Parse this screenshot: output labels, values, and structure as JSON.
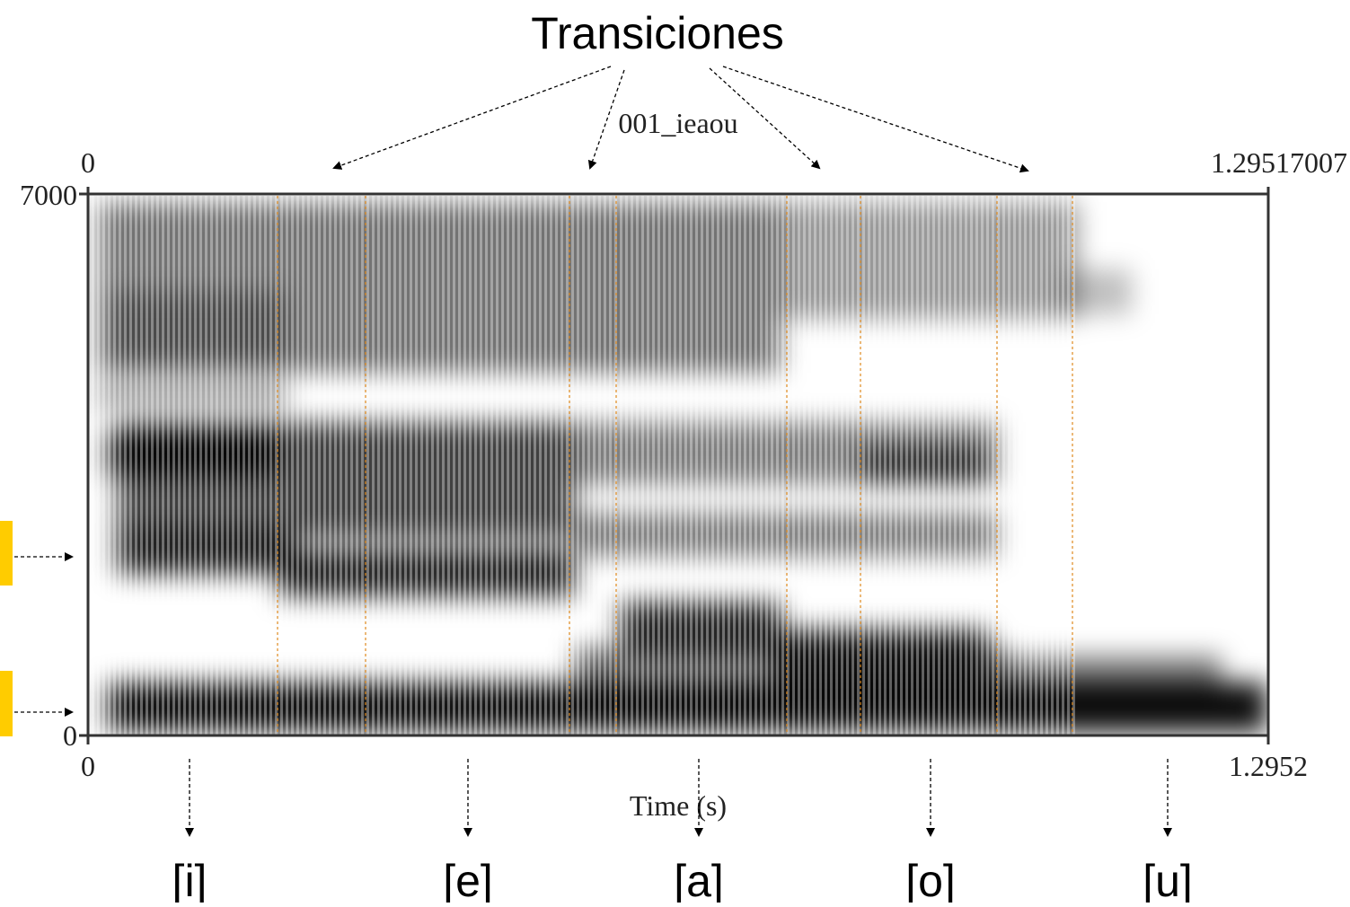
{
  "header": {
    "title": "Transiciones"
  },
  "spectrogram": {
    "label": "001_ieaou",
    "top_left": "0",
    "top_right": "1.29517007",
    "y_top": "7000",
    "y_bottom": "0",
    "x_left": "0",
    "x_right": "1.2952",
    "x_label": "Time (s)"
  },
  "vowels": [
    "[i]",
    "[e]",
    "[a]",
    "[o]",
    "[u]"
  ]
}
